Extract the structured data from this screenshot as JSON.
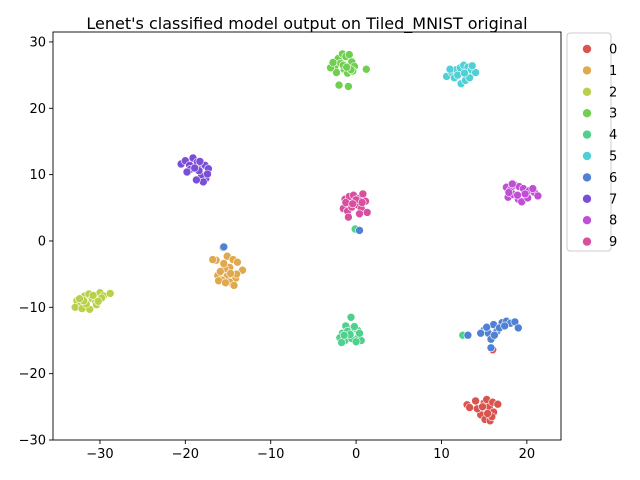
{
  "chart_data": {
    "type": "scatter",
    "title": "Lenet's classified model output on Tiled_MNIST original",
    "xlabel": "",
    "ylabel": "",
    "xlim": [
      -35.5,
      24
    ],
    "ylim": [
      -30,
      31.5
    ],
    "x_ticks": [
      -30,
      -20,
      -10,
      0,
      10,
      20
    ],
    "y_ticks": [
      -30,
      -20,
      -10,
      0,
      10,
      20,
      30
    ],
    "x_tick_labels": [
      "−30",
      "−20",
      "−10",
      "0",
      "10",
      "20"
    ],
    "y_tick_labels": [
      "−30",
      "−20",
      "−10",
      "0",
      "10",
      "20",
      "30"
    ],
    "grid": false,
    "legend_position": "outside-top-right",
    "series": [
      {
        "name": "0",
        "color": "#d9534f",
        "points": [
          [
            13.0,
            -24.7
          ],
          [
            13.3,
            -25.1
          ],
          [
            14.0,
            -24.1
          ],
          [
            14.5,
            -25.6
          ],
          [
            15.0,
            -24.4
          ],
          [
            15.3,
            -23.9
          ],
          [
            15.6,
            -25.0
          ],
          [
            16.0,
            -24.3
          ],
          [
            16.6,
            -24.6
          ],
          [
            14.6,
            -26.2
          ],
          [
            15.1,
            -26.9
          ],
          [
            15.7,
            -27.1
          ],
          [
            16.1,
            -25.8
          ],
          [
            14.2,
            -25.3
          ],
          [
            15.9,
            -26.5
          ],
          [
            14.8,
            -25.0
          ],
          [
            15.4,
            -26.0
          ],
          [
            16.0,
            -16.4
          ]
        ]
      },
      {
        "name": "1",
        "color": "#e0a94e",
        "points": [
          [
            -15.6,
            -1.0
          ],
          [
            -16.4,
            -2.9
          ],
          [
            -15.1,
            -2.3
          ],
          [
            -14.4,
            -2.8
          ],
          [
            -13.9,
            -3.2
          ],
          [
            -14.8,
            -4.0
          ],
          [
            -15.4,
            -4.2
          ],
          [
            -13.3,
            -4.4
          ],
          [
            -16.2,
            -5.2
          ],
          [
            -15.1,
            -5.3
          ],
          [
            -14.1,
            -5.6
          ],
          [
            -15.7,
            -5.9
          ],
          [
            -14.8,
            -6.2
          ],
          [
            -16.1,
            -6.0
          ],
          [
            -14.3,
            -6.7
          ],
          [
            -15.3,
            -6.3
          ],
          [
            -14.0,
            -5.0
          ],
          [
            -15.9,
            -4.6
          ],
          [
            -14.7,
            -4.9
          ],
          [
            -15.5,
            -3.4
          ],
          [
            -16.8,
            -2.8
          ]
        ]
      },
      {
        "name": "2",
        "color": "#b8d04a",
        "points": [
          [
            -32.7,
            -9.0
          ],
          [
            -32.3,
            -9.7
          ],
          [
            -31.8,
            -8.3
          ],
          [
            -31.3,
            -8.0
          ],
          [
            -30.9,
            -8.7
          ],
          [
            -30.5,
            -9.2
          ],
          [
            -30.0,
            -7.8
          ],
          [
            -29.6,
            -8.3
          ],
          [
            -28.8,
            -7.9
          ],
          [
            -32.9,
            -10.0
          ],
          [
            -32.1,
            -10.2
          ],
          [
            -31.2,
            -10.3
          ],
          [
            -30.4,
            -9.6
          ],
          [
            -29.8,
            -8.6
          ],
          [
            -31.6,
            -9.5
          ],
          [
            -31.9,
            -9.0
          ],
          [
            -30.8,
            -8.2
          ],
          [
            -32.4,
            -8.7
          ],
          [
            -30.2,
            -9.1
          ]
        ]
      },
      {
        "name": "3",
        "color": "#6fd04f",
        "points": [
          [
            -2.5,
            26.1
          ],
          [
            -2.1,
            27.5
          ],
          [
            -1.6,
            28.2
          ],
          [
            -1.2,
            27.8
          ],
          [
            -0.8,
            28.1
          ],
          [
            -0.5,
            27.0
          ],
          [
            -0.2,
            26.3
          ],
          [
            -1.4,
            25.9
          ],
          [
            -1.8,
            26.8
          ],
          [
            -2.3,
            25.4
          ],
          [
            -1.0,
            25.3
          ],
          [
            -0.4,
            25.6
          ],
          [
            -3.0,
            26.1
          ],
          [
            -2.0,
            23.5
          ],
          [
            -0.9,
            23.3
          ],
          [
            1.2,
            25.9
          ],
          [
            -1.5,
            26.5
          ],
          [
            -0.6,
            25.8
          ],
          [
            -2.7,
            26.9
          ],
          [
            -1.1,
            26.2
          ]
        ]
      },
      {
        "name": "4",
        "color": "#4fd08c",
        "points": [
          [
            -0.6,
            -11.5
          ],
          [
            -1.2,
            -12.8
          ],
          [
            -0.4,
            -13.1
          ],
          [
            0.2,
            -13.5
          ],
          [
            -1.6,
            -13.9
          ],
          [
            -1.9,
            -14.6
          ],
          [
            -1.3,
            -15.0
          ],
          [
            -0.5,
            -14.7
          ],
          [
            0.3,
            -14.4
          ],
          [
            0.6,
            -15.0
          ],
          [
            -1.0,
            -13.6
          ],
          [
            -0.2,
            -12.9
          ],
          [
            -1.7,
            -15.3
          ],
          [
            -0.7,
            -14.1
          ],
          [
            0.4,
            -13.9
          ],
          [
            12.5,
            -14.2
          ],
          [
            -0.1,
            1.8
          ],
          [
            -1.4,
            -14.2
          ],
          [
            0.0,
            -15.2
          ]
        ]
      },
      {
        "name": "5",
        "color": "#4fd0d6",
        "points": [
          [
            10.6,
            24.8
          ],
          [
            11.2,
            25.4
          ],
          [
            11.7,
            25.8
          ],
          [
            12.2,
            26.1
          ],
          [
            12.6,
            26.5
          ],
          [
            13.1,
            26.2
          ],
          [
            13.5,
            25.8
          ],
          [
            14.0,
            25.4
          ],
          [
            11.5,
            24.6
          ],
          [
            12.3,
            23.7
          ],
          [
            12.8,
            24.2
          ],
          [
            13.3,
            24.6
          ],
          [
            11.9,
            25.0
          ],
          [
            12.7,
            25.3
          ],
          [
            13.6,
            26.4
          ],
          [
            11.0,
            25.9
          ]
        ]
      },
      {
        "name": "6",
        "color": "#4f82d6",
        "points": [
          [
            15.0,
            -13.4
          ],
          [
            15.5,
            -13.9
          ],
          [
            16.1,
            -12.6
          ],
          [
            16.5,
            -13.6
          ],
          [
            17.1,
            -12.3
          ],
          [
            17.6,
            -12.1
          ],
          [
            18.1,
            -12.4
          ],
          [
            18.6,
            -12.2
          ],
          [
            19.0,
            -13.1
          ],
          [
            16.8,
            -13.1
          ],
          [
            15.8,
            -14.8
          ],
          [
            14.6,
            -13.9
          ],
          [
            17.4,
            -12.8
          ],
          [
            15.3,
            -13.0
          ],
          [
            16.2,
            -14.2
          ],
          [
            13.1,
            -14.2
          ],
          [
            15.8,
            -16.1
          ],
          [
            -15.5,
            -0.9
          ],
          [
            0.4,
            1.6
          ]
        ]
      },
      {
        "name": "7",
        "color": "#7a4fd6",
        "points": [
          [
            -20.5,
            11.6
          ],
          [
            -20.0,
            12.1
          ],
          [
            -19.5,
            11.4
          ],
          [
            -19.1,
            12.5
          ],
          [
            -18.6,
            11.9
          ],
          [
            -18.2,
            11.2
          ],
          [
            -17.7,
            11.4
          ],
          [
            -17.3,
            10.9
          ],
          [
            -17.6,
            9.4
          ],
          [
            -18.1,
            9.9
          ],
          [
            -18.4,
            10.6
          ],
          [
            -19.4,
            10.8
          ],
          [
            -17.9,
            8.9
          ],
          [
            -18.7,
            9.2
          ],
          [
            -19.8,
            10.4
          ],
          [
            -18.9,
            11.0
          ],
          [
            -17.4,
            10.1
          ],
          [
            -18.3,
            12.0
          ]
        ]
      },
      {
        "name": "8",
        "color": "#c14fd6",
        "points": [
          [
            17.6,
            8.1
          ],
          [
            18.1,
            7.7
          ],
          [
            18.6,
            8.4
          ],
          [
            19.1,
            8.2
          ],
          [
            19.6,
            7.9
          ],
          [
            20.3,
            7.6
          ],
          [
            20.9,
            7.3
          ],
          [
            21.3,
            6.8
          ],
          [
            17.8,
            6.6
          ],
          [
            18.4,
            7.0
          ],
          [
            19.0,
            6.3
          ],
          [
            19.4,
            5.9
          ],
          [
            20.1,
            6.5
          ],
          [
            20.7,
            7.9
          ],
          [
            18.3,
            8.6
          ],
          [
            19.8,
            7.1
          ],
          [
            18.9,
            6.9
          ],
          [
            17.9,
            7.3
          ]
        ]
      },
      {
        "name": "9",
        "color": "#d94fa0",
        "points": [
          [
            -1.3,
            6.3
          ],
          [
            -0.8,
            6.7
          ],
          [
            -0.3,
            6.9
          ],
          [
            0.3,
            6.4
          ],
          [
            0.8,
            7.1
          ],
          [
            1.1,
            6.0
          ],
          [
            -1.5,
            4.9
          ],
          [
            -1.0,
            4.5
          ],
          [
            -0.5,
            5.1
          ],
          [
            0.1,
            5.5
          ],
          [
            0.6,
            4.9
          ],
          [
            1.3,
            4.3
          ],
          [
            -0.9,
            3.6
          ],
          [
            0.4,
            4.1
          ],
          [
            -1.2,
            5.8
          ],
          [
            0.0,
            6.2
          ],
          [
            -0.4,
            5.6
          ],
          [
            0.7,
            5.8
          ]
        ]
      }
    ]
  }
}
